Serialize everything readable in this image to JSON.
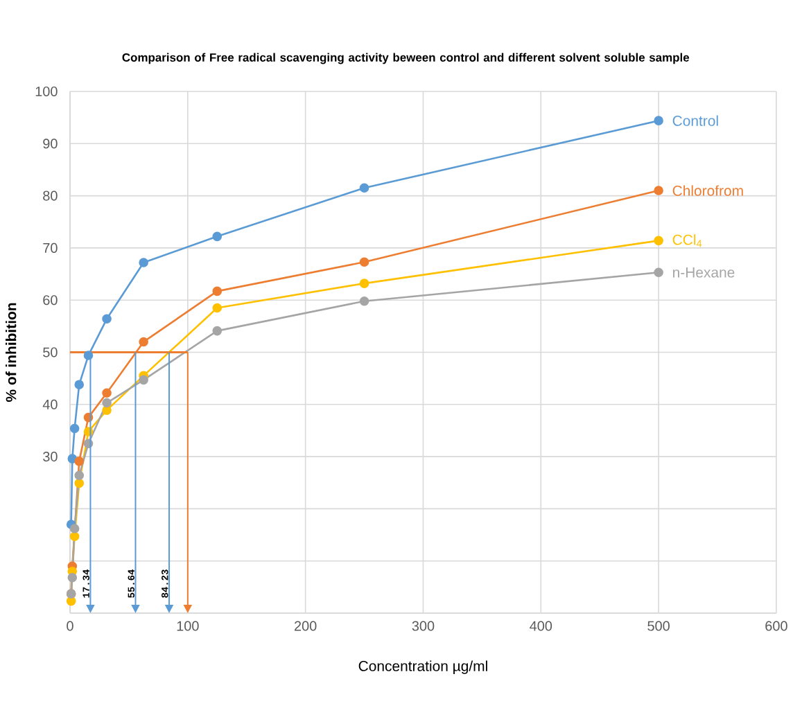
{
  "chart_data": {
    "type": "line",
    "title": "Comparison of  Free radical scavenging activity beween control and different solvent soluble sample",
    "xlabel": "Concentration µg/ml",
    "ylabel": "% of inhibition",
    "x": [
      0.98,
      1.95,
      3.9,
      7.8,
      15.6,
      31.25,
      62.5,
      125,
      250,
      500
    ],
    "series": [
      {
        "name": "Control",
        "color": "#5b9bd5",
        "values": [
          17.0,
          29.6,
          35.4,
          43.8,
          49.4,
          56.4,
          67.2,
          72.2,
          81.5,
          94.4
        ]
      },
      {
        "name": "Chlorofrom",
        "color": "#ed7d31",
        "x": [
          0.98,
          1.95,
          7.8,
          15.6,
          31.25,
          62.5,
          125,
          250,
          500
        ],
        "values": [
          3.7,
          9.0,
          29.1,
          37.5,
          42.2,
          52.0,
          61.7,
          67.3,
          81.0
        ]
      },
      {
        "name": "CCl$_{4}$",
        "color": "#ffc000",
        "values": [
          2.3,
          8.0,
          14.7,
          24.9,
          34.8,
          38.9,
          45.5,
          58.5,
          63.2,
          71.4
        ]
      },
      {
        "name": "n-Hexane",
        "color": "#a5a5a5",
        "values": [
          3.7,
          6.8,
          16.2,
          26.4,
          32.5,
          40.3,
          44.7,
          54.1,
          59.8,
          65.3
        ]
      }
    ],
    "xlim": [
      0,
      600
    ],
    "ylim": [
      0,
      100
    ],
    "xticks": [
      0,
      100,
      200,
      300,
      400,
      500,
      600
    ],
    "yticks": [
      {
        "value": 0,
        "label": null
      },
      {
        "value": 10,
        "label": null
      },
      {
        "value": 20,
        "label": null
      },
      30,
      40,
      50,
      60,
      70,
      80,
      90,
      100
    ],
    "ref_lines": [
      {
        "axis": "y",
        "value": 50,
        "color": "#ed7d31"
      },
      {
        "axis": "x",
        "value": 17.34,
        "label": "17.34",
        "color": "#5b9bd5"
      },
      {
        "axis": "x",
        "value": 55.64,
        "label": "55.64",
        "color": "#5b9bd5"
      },
      {
        "axis": "x",
        "value": 84.23,
        "label": "84.23",
        "color": "#5b9bd5"
      },
      {
        "axis": "x",
        "value": 100,
        "color": "#ed7d31"
      }
    ],
    "grid": true,
    "legend": false,
    "marker": "circle",
    "line_style": "solid"
  }
}
